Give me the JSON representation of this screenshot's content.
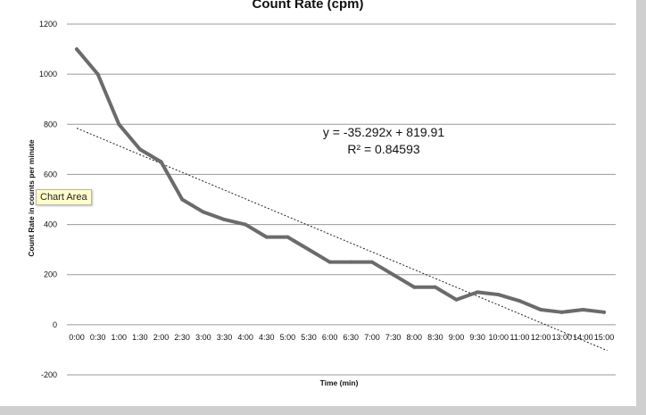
{
  "chart_data": {
    "type": "line",
    "title": "Count Rate (cpm)",
    "xlabel": "Time (min)",
    "ylabel": "Count Rate in counts per minute",
    "ylim": [
      -200,
      1200
    ],
    "yticks": [
      -200,
      0,
      200,
      400,
      600,
      800,
      1000,
      1200
    ],
    "grid": true,
    "categories": [
      "0:00",
      "0:30",
      "1:00",
      "1:30",
      "2:00",
      "2:30",
      "3:00",
      "3:30",
      "4:00",
      "4:30",
      "5:00",
      "5:30",
      "6:00",
      "6:30",
      "7:00",
      "7:30",
      "8:00",
      "8:30",
      "9:00",
      "9:30",
      "10:00",
      "11:00",
      "12:00",
      "13:00",
      "14:00",
      "15:00"
    ],
    "series": [
      {
        "name": "Count Rate (cpm)",
        "color": "#6b6b6b",
        "values": [
          1100,
          1000,
          800,
          700,
          650,
          500,
          450,
          420,
          400,
          350,
          350,
          300,
          250,
          250,
          250,
          200,
          150,
          150,
          100,
          130,
          120,
          95,
          60,
          50,
          60,
          50
        ]
      }
    ],
    "trendline": {
      "type": "linear",
      "slope": -35.292,
      "intercept": 819.91,
      "equation_label": "y = -35.292x + 819.91",
      "r2_label": "R² = 0.84593",
      "color": "#222222"
    }
  },
  "tooltip": {
    "text": "Chart Area"
  }
}
